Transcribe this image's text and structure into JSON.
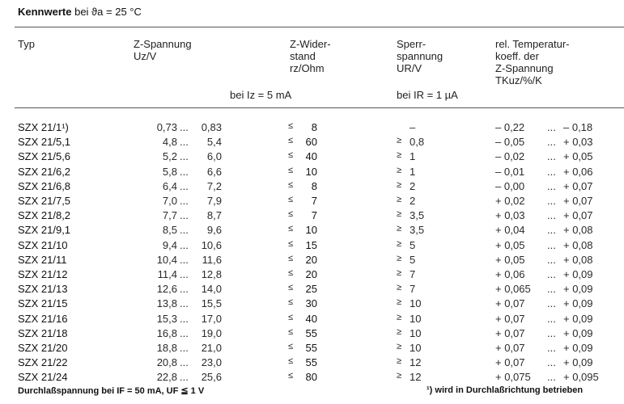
{
  "title": {
    "bold": "Kennwerte",
    "rest": "bei ϑa = 25 °C"
  },
  "headers": {
    "typ": "Typ",
    "uz": [
      "Z-Spannung",
      "Uz/V"
    ],
    "rz": [
      "Z-Wider-",
      "stand",
      "rz/Ohm"
    ],
    "ur": [
      "Sperr-",
      "spannung",
      "UR/V"
    ],
    "tk": [
      "rel. Temperatur-",
      "koeff. der",
      "Z-Spannung",
      "TKuz/%/K"
    ],
    "cond_iz": "bei Iz = 5 mA",
    "cond_ir": "bei IR = 1 µA"
  },
  "rows": [
    {
      "typ": "SZX 21/1¹)",
      "uz_lo": "0,73",
      "uz_hi": "0,83",
      "rz_op": "≤",
      "rz": "8",
      "ur_op": "",
      "ur": "–",
      "tk_lo": "– 0,22",
      "tk_hi": "– 0,18"
    },
    {
      "typ": "SZX 21/5,1",
      "uz_lo": "4,8",
      "uz_hi": "5,4",
      "rz_op": "≤",
      "rz": "60",
      "ur_op": "≥",
      "ur": "0,8",
      "tk_lo": "– 0,05",
      "tk_hi": "+ 0,03"
    },
    {
      "typ": "SZX 21/5,6",
      "uz_lo": "5,2",
      "uz_hi": "6,0",
      "rz_op": "≤",
      "rz": "40",
      "ur_op": "≥",
      "ur": "1",
      "tk_lo": "– 0,02",
      "tk_hi": "+ 0,05"
    },
    {
      "typ": "SZX 21/6,2",
      "uz_lo": "5,8",
      "uz_hi": "6,6",
      "rz_op": "≤",
      "rz": "10",
      "ur_op": "≥",
      "ur": "1",
      "tk_lo": "– 0,01",
      "tk_hi": "+ 0,06"
    },
    {
      "typ": "SZX 21/6,8",
      "uz_lo": "6,4",
      "uz_hi": "7,2",
      "rz_op": "≤",
      "rz": "8",
      "ur_op": "≥",
      "ur": "2",
      "tk_lo": "– 0,00",
      "tk_hi": "+ 0,07"
    },
    {
      "typ": "SZX 21/7,5",
      "uz_lo": "7,0",
      "uz_hi": "7,9",
      "rz_op": "≤",
      "rz": "7",
      "ur_op": "≥",
      "ur": "2",
      "tk_lo": "+ 0,02",
      "tk_hi": "+ 0,07"
    },
    {
      "typ": "SZX 21/8,2",
      "uz_lo": "7,7",
      "uz_hi": "8,7",
      "rz_op": "≤",
      "rz": "7",
      "ur_op": "≥",
      "ur": "3,5",
      "tk_lo": "+ 0,03",
      "tk_hi": "+ 0,07"
    },
    {
      "typ": "SZX 21/9,1",
      "uz_lo": "8,5",
      "uz_hi": "9,6",
      "rz_op": "≤",
      "rz": "10",
      "ur_op": "≥",
      "ur": "3,5",
      "tk_lo": "+ 0,04",
      "tk_hi": "+ 0,08"
    },
    {
      "typ": "SZX 21/10",
      "uz_lo": "9,4",
      "uz_hi": "10,6",
      "rz_op": "≤",
      "rz": "15",
      "ur_op": "≥",
      "ur": "5",
      "tk_lo": "+ 0,05",
      "tk_hi": "+ 0,08"
    },
    {
      "typ": "SZX 21/11",
      "uz_lo": "10,4",
      "uz_hi": "11,6",
      "rz_op": "≤",
      "rz": "20",
      "ur_op": "≥",
      "ur": "5",
      "tk_lo": "+ 0,05",
      "tk_hi": "+ 0,08"
    },
    {
      "typ": "SZX 21/12",
      "uz_lo": "11,4",
      "uz_hi": "12,8",
      "rz_op": "≤",
      "rz": "20",
      "ur_op": "≥",
      "ur": "7",
      "tk_lo": "+ 0,06",
      "tk_hi": "+ 0,09"
    },
    {
      "typ": "SZX 21/13",
      "uz_lo": "12,6",
      "uz_hi": "14,0",
      "rz_op": "≤",
      "rz": "25",
      "ur_op": "≥",
      "ur": "7",
      "tk_lo": "+ 0,065",
      "tk_hi": "+ 0,09"
    },
    {
      "typ": "SZX 21/15",
      "uz_lo": "13,8",
      "uz_hi": "15,5",
      "rz_op": "≤",
      "rz": "30",
      "ur_op": "≥",
      "ur": "10",
      "tk_lo": "+ 0,07",
      "tk_hi": "+ 0,09"
    },
    {
      "typ": "SZX 21/16",
      "uz_lo": "15,3",
      "uz_hi": "17,0",
      "rz_op": "≤",
      "rz": "40",
      "ur_op": "≥",
      "ur": "10",
      "tk_lo": "+ 0,07",
      "tk_hi": "+ 0,09"
    },
    {
      "typ": "SZX 21/18",
      "uz_lo": "16,8",
      "uz_hi": "19,0",
      "rz_op": "≤",
      "rz": "55",
      "ur_op": "≥",
      "ur": "10",
      "tk_lo": "+ 0,07",
      "tk_hi": "+ 0,09"
    },
    {
      "typ": "SZX 21/20",
      "uz_lo": "18,8",
      "uz_hi": "21,0",
      "rz_op": "≤",
      "rz": "55",
      "ur_op": "≥",
      "ur": "10",
      "tk_lo": "+ 0,07",
      "tk_hi": "+ 0,09"
    },
    {
      "typ": "SZX 21/22",
      "uz_lo": "20,8",
      "uz_hi": "23,0",
      "rz_op": "≤",
      "rz": "55",
      "ur_op": "≥",
      "ur": "12",
      "tk_lo": "+ 0,07",
      "tk_hi": "+ 0,09"
    },
    {
      "typ": "SZX 21/24",
      "uz_lo": "22,8",
      "uz_hi": "25,6",
      "rz_op": "≤",
      "rz": "80",
      "ur_op": "≥",
      "ur": "12",
      "tk_lo": "+ 0,075",
      "tk_hi": "+ 0,095"
    }
  ],
  "dots": "...",
  "footer": {
    "left": "Durchlaßspannung bei IF = 50 mA, UF ≦ 1 V",
    "right": "¹) wird in Durchlaßrichtung betrieben"
  }
}
